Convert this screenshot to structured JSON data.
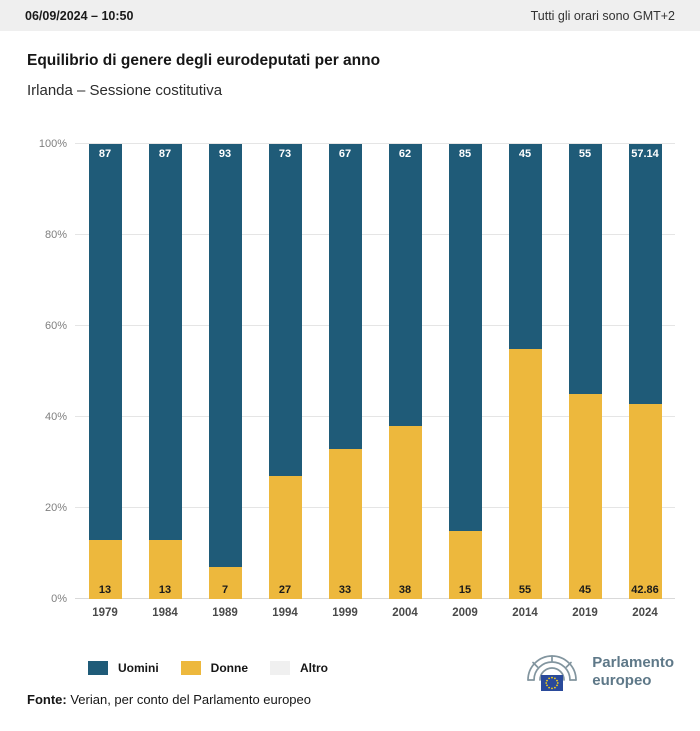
{
  "header": {
    "datetime": "06/09/2024 – 10:50",
    "timezone_note": "Tutti gli orari sono GMT+2"
  },
  "title": "Equilibrio di genere degli eurodeputati per anno",
  "subtitle": "Irlanda – Sessione costitutiva",
  "chart_data": {
    "type": "bar",
    "stacked": true,
    "title": "Equilibrio di genere degli eurodeputati per anno",
    "subtitle": "Irlanda – Sessione costitutiva",
    "categories": [
      "1979",
      "1984",
      "1989",
      "1994",
      "1999",
      "2004",
      "2009",
      "2014",
      "2019",
      "2024"
    ],
    "series": [
      {
        "name": "Uomini",
        "color": "#1f5b78",
        "values": [
          87,
          87,
          93,
          73,
          67,
          62,
          85,
          45,
          55,
          57.14
        ],
        "labels": [
          "87",
          "87",
          "93",
          "73",
          "67",
          "62",
          "85",
          "45",
          "55",
          "57.14"
        ],
        "label_position": "top",
        "label_color": "#ffffff"
      },
      {
        "name": "Donne",
        "color": "#edb83d",
        "values": [
          13,
          13,
          7,
          27,
          33,
          38,
          15,
          55,
          45,
          42.86
        ],
        "labels": [
          "13",
          "13",
          "7",
          "27",
          "33",
          "38",
          "15",
          "55",
          "45",
          "42.86"
        ],
        "label_position": "bottom",
        "label_color": "#1a1a1a"
      },
      {
        "name": "Altro",
        "color": "#f0f0f0",
        "values": [
          0,
          0,
          0,
          0,
          0,
          0,
          0,
          0,
          0,
          0
        ],
        "labels": [
          "",
          "",
          "",
          "",
          "",
          "",
          "",
          "",
          "",
          ""
        ],
        "label_position": "none",
        "label_color": "#1a1a1a"
      }
    ],
    "ylim": [
      0,
      100
    ],
    "yticks": [
      "0%",
      "20%",
      "40%",
      "60%",
      "80%",
      "100%"
    ],
    "grid": true,
    "legend_position": "bottom"
  },
  "legend": {
    "items": [
      {
        "label": "Uomini",
        "color": "#1f5b78"
      },
      {
        "label": "Donne",
        "color": "#edb83d"
      },
      {
        "label": "Altro",
        "color": "#f0f0f0"
      }
    ]
  },
  "footer": {
    "source_label": "Fonte:",
    "source_text": " Verian, per conto del Parlamento europeo"
  },
  "logo": {
    "text_line1": "Parlamento",
    "text_line2": "europeo"
  }
}
